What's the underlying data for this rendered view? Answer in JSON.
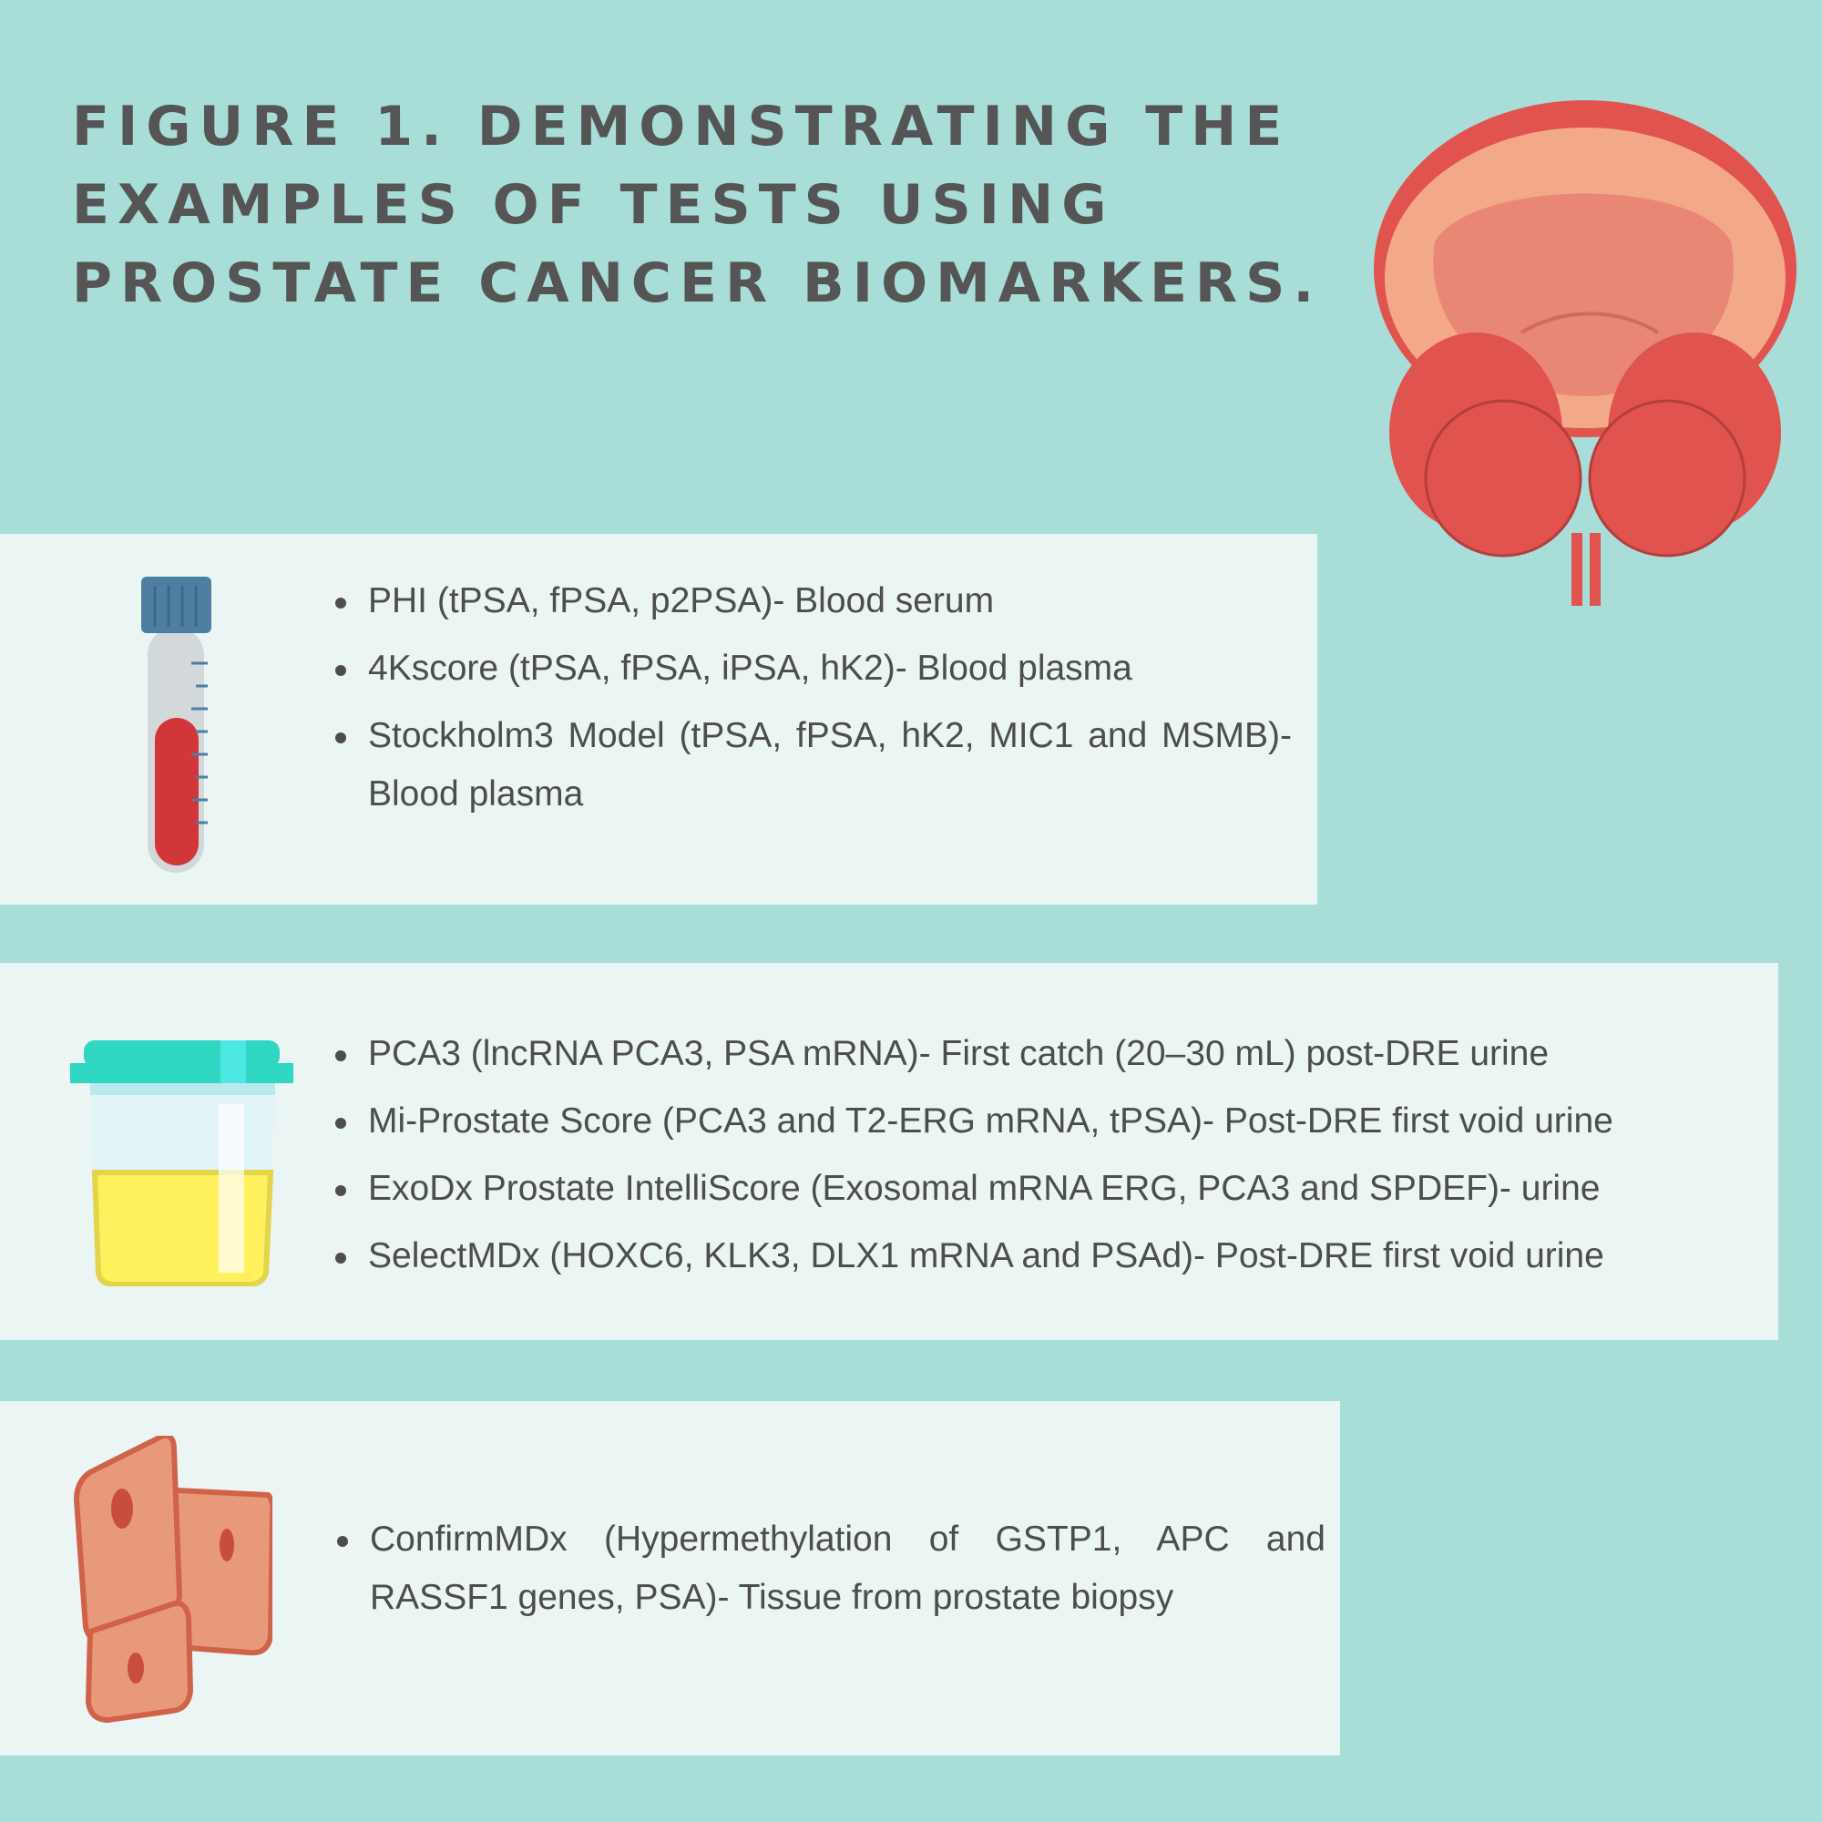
{
  "title": "FIGURE 1. DEMONSTRATING THE EXAMPLES OF TESTS USING PROSTATE CANCER BIOMARKERS.",
  "sections": [
    {
      "icon": "blood-tube-icon",
      "items": [
        "PHI (tPSA, fPSA, p2PSA)- Blood serum",
        "4Kscore (tPSA, fPSA, iPSA, hK2)- Blood plasma",
        "Stockholm3 Model (tPSA, fPSA, hK2, MIC1 and MSMB)- Blood plasma"
      ]
    },
    {
      "icon": "urine-cup-icon",
      "items": [
        "PCA3 (lncRNA PCA3, PSA mRNA)- First catch (20–30 mL) post-DRE urine",
        "Mi-Prostate Score (PCA3 and T2-ERG mRNA, tPSA)- Post-DRE first void urine",
        "ExoDx Prostate IntelliScore (Exosomal mRNA ERG, PCA3 and SPDEF)-  urine",
        "SelectMDx (HOXC6, KLK3, DLX1 mRNA and PSAd)- Post-DRE first void urine"
      ]
    },
    {
      "icon": "tissue-cells-icon",
      "items": [
        "ConfirmMDx (Hypermethylation of GSTP1, APC and RASSF1 genes, PSA)- Tissue from prostate biopsy"
      ]
    }
  ],
  "colors": {
    "background": "#a9ddd8",
    "panel": "#eaf5f4",
    "text": "#4d4d4d",
    "organ": "#e0534f"
  }
}
